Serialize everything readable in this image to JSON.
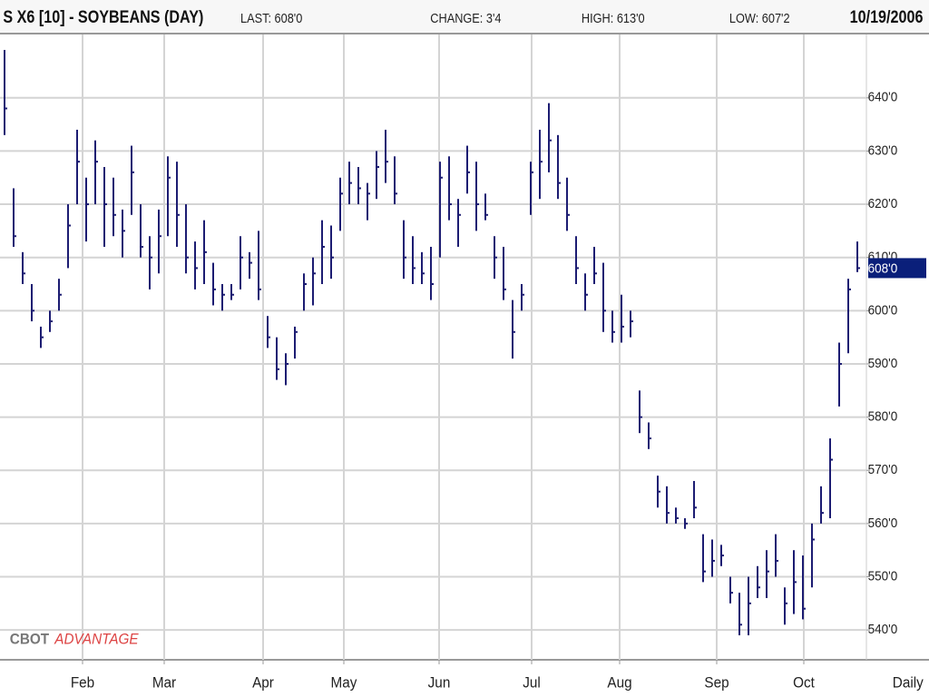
{
  "chart_data": {
    "type": "ohlc",
    "title": "S X6 [10] - SOYBEANS (DAY)",
    "stats": [
      "LAST: 608'0",
      "CHANGE: 3'4",
      "HIGH: 613'0",
      "LOW: 607'2"
    ],
    "date": "10/19/2006",
    "interval": "Daily",
    "brand": "CBOT",
    "product": "ADVANTAGE",
    "color": "#1c1c72",
    "grid": true,
    "xlim": [
      -0.5,
      95
    ],
    "xticks": [
      {
        "value": 8.6,
        "label": "Feb"
      },
      {
        "value": 17.6,
        "label": "Mar"
      },
      {
        "value": 28.5,
        "label": "Apr"
      },
      {
        "value": 37.4,
        "label": "May"
      },
      {
        "value": 47.9,
        "label": "Jun"
      },
      {
        "value": 58.1,
        "label": "Jul"
      },
      {
        "value": 67.8,
        "label": "Aug"
      },
      {
        "value": 78.5,
        "label": "Sep"
      },
      {
        "value": 88.1,
        "label": "Oct"
      }
    ],
    "ylim": [
      534.4,
      651.9
    ],
    "yticks": [
      {
        "value": 540,
        "label": "540'0"
      },
      {
        "value": 550,
        "label": "550'0"
      },
      {
        "value": 560,
        "label": "560'0"
      },
      {
        "value": 570,
        "label": "570'0"
      },
      {
        "value": 580,
        "label": "580'0"
      },
      {
        "value": 590,
        "label": "590'0"
      },
      {
        "value": 600,
        "label": "600'0"
      },
      {
        "value": 610,
        "label": "610'0"
      },
      {
        "value": 620,
        "label": "620'0"
      },
      {
        "value": 630,
        "label": "630'0"
      },
      {
        "value": 640,
        "label": "640'0"
      }
    ],
    "last_marker": {
      "value": 608,
      "label": "608'0"
    },
    "high": [
      649,
      623,
      611,
      605,
      597,
      600,
      606,
      620,
      634,
      625,
      632,
      627,
      625,
      619,
      631,
      620,
      614,
      619,
      629,
      628,
      620,
      613,
      617,
      609,
      605,
      605,
      614,
      611,
      615,
      599,
      595,
      592,
      597,
      607,
      610,
      617,
      616,
      625,
      628,
      627,
      624,
      630,
      634,
      629,
      617,
      614,
      611,
      612,
      628,
      629,
      621,
      631,
      628,
      622,
      614,
      612,
      602,
      605,
      628,
      634,
      639,
      633,
      625,
      614,
      607,
      612,
      609,
      600,
      603,
      600,
      585,
      579,
      569,
      567,
      563,
      561,
      568,
      558,
      557,
      556,
      550,
      547,
      550,
      552,
      555,
      558,
      548,
      555,
      554,
      560,
      567,
      576,
      594,
      606,
      613
    ],
    "low": [
      633,
      612,
      605,
      598,
      593,
      596,
      600,
      608,
      620,
      613,
      620,
      612,
      614,
      610,
      618,
      610,
      604,
      607,
      614,
      612,
      607,
      604,
      605,
      601,
      600,
      602,
      604,
      606,
      602,
      593,
      587,
      586,
      591,
      600,
      601,
      605,
      606,
      615,
      620,
      620,
      617,
      621,
      624,
      620,
      606,
      605,
      605,
      602,
      610,
      617,
      612,
      622,
      615,
      617,
      606,
      602,
      591,
      600,
      618,
      621,
      626,
      621,
      615,
      605,
      600,
      605,
      596,
      594,
      594,
      595,
      577,
      574,
      563,
      560,
      560,
      559,
      561,
      549,
      550,
      552,
      545,
      539,
      539,
      546,
      546,
      550,
      541,
      543,
      542,
      548,
      560,
      561,
      582,
      592,
      607.25
    ],
    "close": [
      638,
      614,
      607,
      600,
      595,
      598,
      603,
      616,
      628,
      620,
      628,
      620,
      618,
      615,
      626,
      612,
      610,
      614,
      625,
      618,
      610,
      608,
      611,
      604,
      603,
      603,
      610,
      609,
      604,
      595,
      589,
      590,
      596,
      605,
      607,
      612,
      610,
      622,
      624,
      623,
      622,
      627,
      628,
      622,
      610,
      608,
      607,
      605,
      625,
      620,
      618,
      626,
      620,
      618,
      610,
      604,
      596,
      603,
      626,
      628,
      632,
      624,
      618,
      608,
      603,
      607,
      600,
      596,
      597,
      598,
      580,
      576,
      566,
      562,
      561,
      560,
      563,
      551,
      553,
      554,
      547,
      541,
      545,
      548,
      551,
      553,
      545,
      549,
      544,
      557,
      562,
      572,
      590,
      604,
      608
    ]
  }
}
